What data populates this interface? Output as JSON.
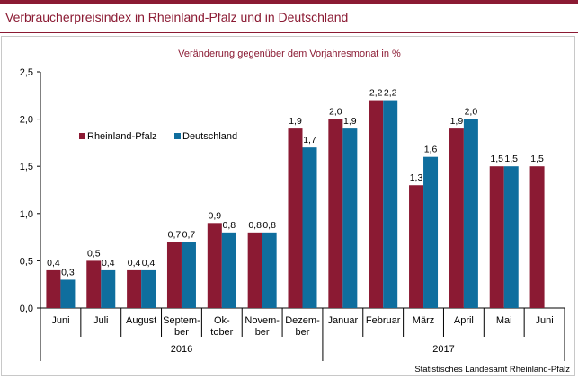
{
  "page": {
    "title": "Verbraucherpreisindex in Rheinland-Pfalz und in Deutschland"
  },
  "chart_data": {
    "type": "bar",
    "subtitle": "Veränderung gegenüber dem Vorjahresmonat in %",
    "categories": [
      [
        "Juni"
      ],
      [
        "Juli"
      ],
      [
        "August"
      ],
      [
        "Septem-",
        "ber"
      ],
      [
        "Ok-",
        "tober"
      ],
      [
        "Novem-",
        "ber"
      ],
      [
        "Dezem-",
        "ber"
      ],
      [
        "Januar"
      ],
      [
        "Februar"
      ],
      [
        "März"
      ],
      [
        "April"
      ],
      [
        "Mai"
      ],
      [
        "Juni"
      ]
    ],
    "year_groups": [
      {
        "label": "2016",
        "start": 0,
        "end": 6
      },
      {
        "label": "2017",
        "start": 7,
        "end": 12
      }
    ],
    "series": [
      {
        "name": "Rheinland-Pfalz",
        "color": "#8b1a33",
        "values": [
          0.4,
          0.5,
          0.4,
          0.7,
          0.9,
          0.8,
          1.9,
          2.0,
          2.2,
          1.3,
          1.9,
          1.5,
          1.5
        ],
        "labels": [
          "0,4",
          "0,5",
          "0,4",
          "0,7",
          "0,9",
          "0,8",
          "1,9",
          "2,0",
          "2,2",
          "1,3",
          "1,9",
          "1,5",
          "1,5"
        ]
      },
      {
        "name": "Deutschland",
        "color": "#0f6e9e",
        "values": [
          0.3,
          0.4,
          0.4,
          0.7,
          0.8,
          0.8,
          1.7,
          1.9,
          2.2,
          1.6,
          2.0,
          1.5,
          null
        ],
        "labels": [
          "0,3",
          "0,4",
          "0,4",
          "0,7",
          "0,8",
          "0,8",
          "1,7",
          "1,9",
          "2,2",
          "1,6",
          "2,0",
          "1,5",
          null
        ]
      }
    ],
    "y_ticks": [
      {
        "value": 0.0,
        "label": "0,0"
      },
      {
        "value": 0.5,
        "label": "0,5"
      },
      {
        "value": 1.0,
        "label": "1,0"
      },
      {
        "value": 1.5,
        "label": "1,5"
      },
      {
        "value": 2.0,
        "label": "2,0"
      },
      {
        "value": 2.5,
        "label": "2,5"
      }
    ],
    "ylim": [
      0,
      2.5
    ],
    "grid": false,
    "legend_position": "top-left"
  },
  "source": "Statistisches Landesamt Rheinland-Pfalz"
}
